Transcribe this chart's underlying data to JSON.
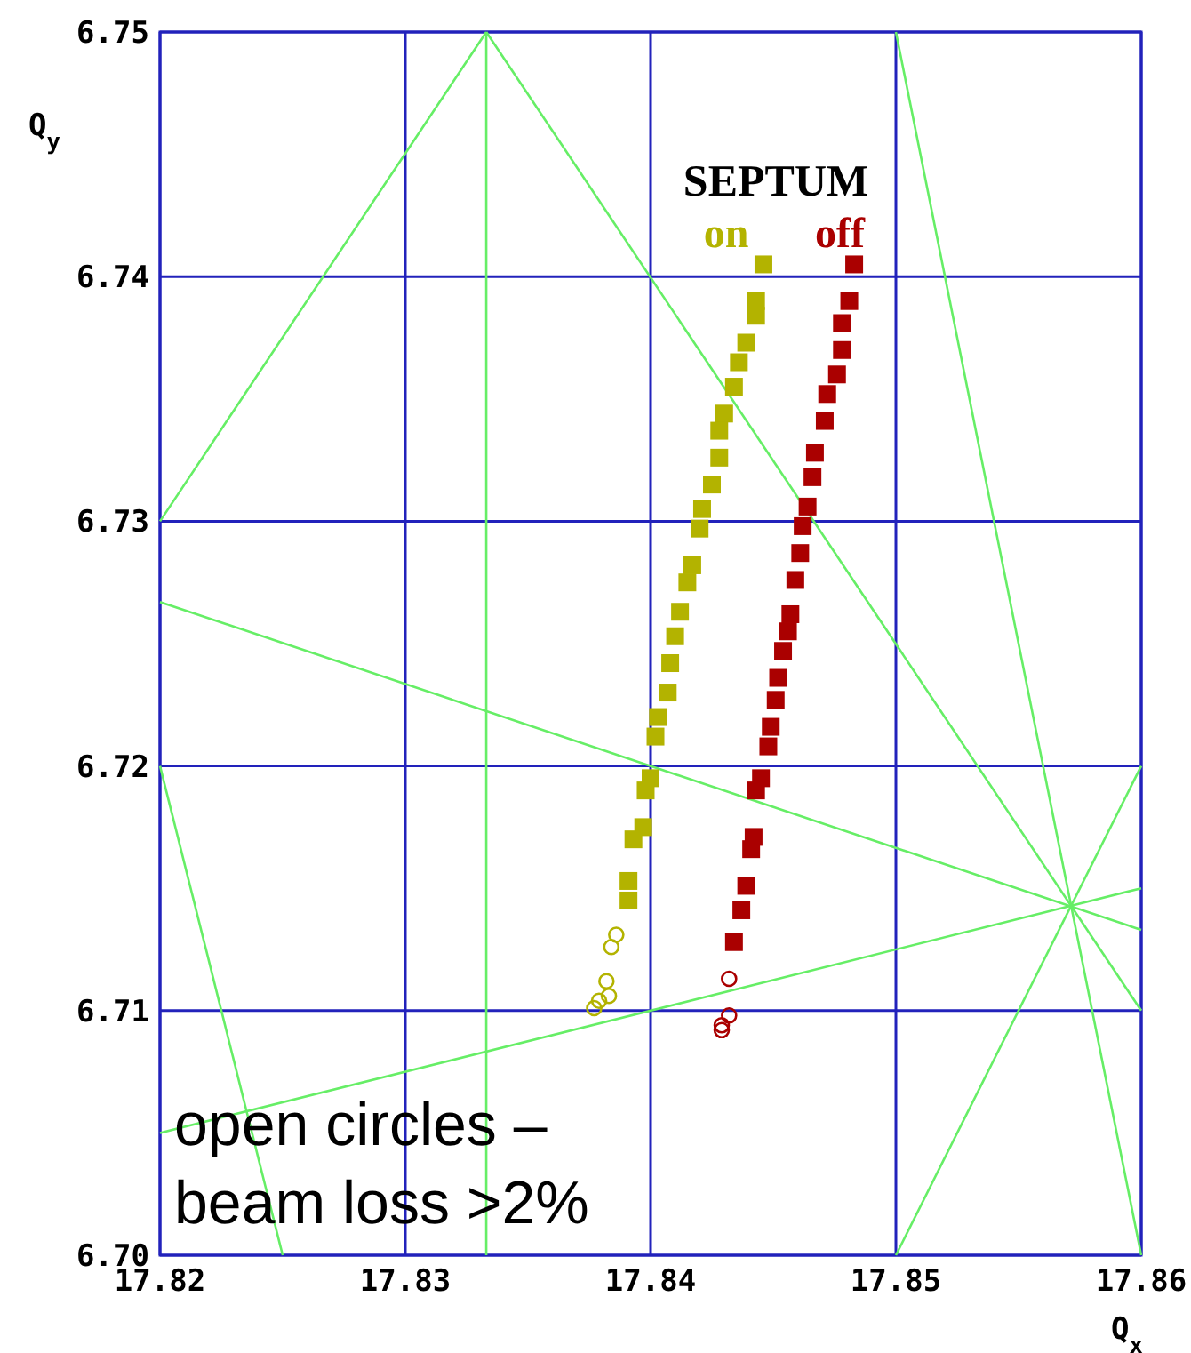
{
  "chart_data": {
    "type": "scatter",
    "xlabel": "Q$_{x}$",
    "ylabel": "Q$_{y}$",
    "legend_title": "SEPTUM",
    "legend": "top right",
    "grid": true,
    "xlim": [
      17.82,
      17.86
    ],
    "xticks": [
      17.82,
      17.83,
      17.84,
      17.85,
      17.86
    ],
    "ylim": [
      6.7,
      6.75
    ],
    "yticks": [
      {
        "value": 6.7,
        "label": "6.70"
      },
      6.71,
      6.72,
      6.73,
      6.74,
      6.75
    ],
    "annotations": [
      "open circles – beam loss >2%"
    ],
    "series": [
      {
        "type": "line",
        "marker": "none",
        "color": "#66ee66",
        "x": [
          17.82,
          17.8333
        ],
        "values": [
          6.73,
          6.75
        ]
      },
      {
        "type": "line",
        "marker": "none",
        "color": "#66ee66",
        "x": [
          17.8333,
          17.86
        ],
        "values": [
          6.75,
          6.71
        ]
      },
      {
        "type": "line",
        "marker": "none",
        "color": "#66ee66",
        "x": [
          17.8333,
          17.8333
        ],
        "values": [
          6.7,
          6.75
        ]
      },
      {
        "type": "line",
        "marker": "none",
        "color": "#66ee66",
        "x": [
          17.82,
          17.86
        ],
        "values": [
          6.7267,
          6.7133
        ]
      },
      {
        "type": "line",
        "marker": "none",
        "color": "#66ee66",
        "x": [
          17.82,
          17.86
        ],
        "values": [
          6.705,
          6.715
        ]
      },
      {
        "type": "line",
        "marker": "none",
        "color": "#66ee66",
        "x": [
          17.82,
          17.825
        ],
        "values": [
          6.72,
          6.7
        ]
      },
      {
        "type": "line",
        "marker": "none",
        "color": "#66ee66",
        "x": [
          17.85,
          17.86
        ],
        "values": [
          6.75,
          6.7
        ]
      },
      {
        "type": "line",
        "marker": "none",
        "color": "#66ee66",
        "x": [
          17.85,
          17.86
        ],
        "values": [
          6.7,
          6.72
        ]
      },
      {
        "name": "on",
        "marker": "square",
        "color": "#b3b300",
        "x": [
          17.8446,
          17.8443,
          17.8443,
          17.8439,
          17.8436,
          17.8434,
          17.843,
          17.8428,
          17.8428,
          17.8425,
          17.8421,
          17.842,
          17.8417,
          17.8415,
          17.8412,
          17.841,
          17.8408,
          17.8407,
          17.8403,
          17.8402,
          17.84,
          17.8398,
          17.8397,
          17.8393,
          17.8391,
          17.8391
        ],
        "values": [
          6.7405,
          6.739,
          6.7384,
          6.7373,
          6.7365,
          6.7355,
          6.7344,
          6.7337,
          6.7326,
          6.7315,
          6.7305,
          6.7297,
          6.7282,
          6.7275,
          6.7263,
          6.7253,
          6.7242,
          6.723,
          6.722,
          6.7212,
          6.7195,
          6.719,
          6.7175,
          6.717,
          6.7153,
          6.7145
        ]
      },
      {
        "marker": "circle",
        "color": "#b3b300",
        "x": [
          17.8386,
          17.8384,
          17.8382,
          17.8383,
          17.8379,
          17.8377
        ],
        "values": [
          6.7131,
          6.7126,
          6.7112,
          6.7106,
          6.7104,
          6.7101
        ]
      },
      {
        "name": "off",
        "marker": "square",
        "color": "#aa0000",
        "x": [
          17.8483,
          17.8481,
          17.8478,
          17.8478,
          17.8476,
          17.8472,
          17.8471,
          17.8467,
          17.8466,
          17.8464,
          17.8462,
          17.8461,
          17.8459,
          17.8457,
          17.8456,
          17.8454,
          17.8452,
          17.8451,
          17.8449,
          17.8448,
          17.8445,
          17.8443,
          17.8442,
          17.8441,
          17.8439,
          17.8437,
          17.8434
        ],
        "values": [
          6.7405,
          6.739,
          6.7381,
          6.737,
          6.736,
          6.7352,
          6.7341,
          6.7328,
          6.7318,
          6.7306,
          6.7298,
          6.7287,
          6.7276,
          6.7262,
          6.7255,
          6.7247,
          6.7236,
          6.7227,
          6.7216,
          6.7208,
          6.7195,
          6.719,
          6.7171,
          6.7166,
          6.7151,
          6.7141,
          6.7128
        ]
      },
      {
        "marker": "circle",
        "color": "#aa0000",
        "x": [
          17.8432,
          17.8432,
          17.8429,
          17.8429
        ],
        "values": [
          6.7113,
          6.7098,
          6.7094,
          6.7092
        ]
      }
    ]
  }
}
